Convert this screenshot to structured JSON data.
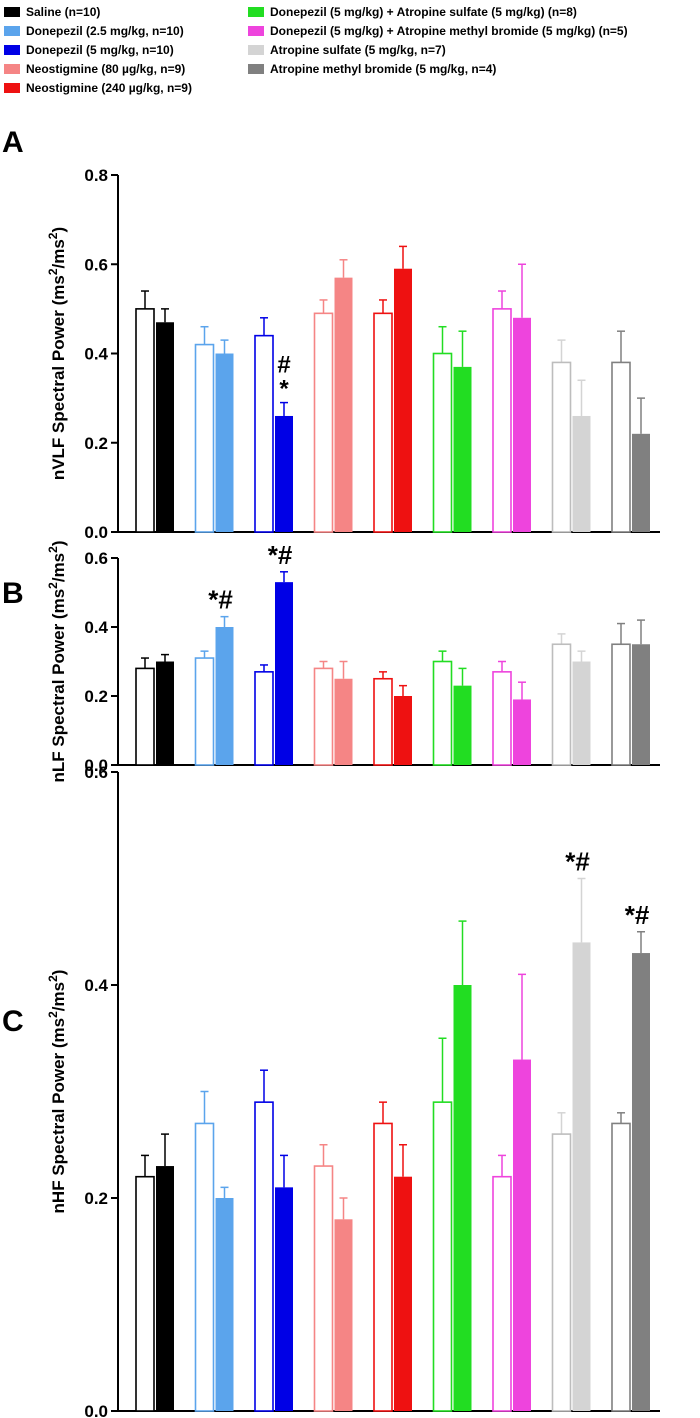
{
  "legend": [
    {
      "label": "Saline (n=10)",
      "color": "#000000"
    },
    {
      "label": "Donepezil (2.5 mg/kg, n=10)",
      "color": "#5ba4ec"
    },
    {
      "label": "Donepezil (5 mg/kg, n=10)",
      "color": "#0000e6"
    },
    {
      "label": "Neostigmine (80 µg/kg, n=9)",
      "color": "#f58585"
    },
    {
      "label": "Neostigmine (240 µg/kg, n=9)",
      "color": "#ee1111"
    },
    {
      "label": "Donepezil (5 mg/kg) + Atropine sulfate (5 mg/kg) (n=8)",
      "color": "#22dd22"
    },
    {
      "label": "Donepezil (5 mg/kg) + Atropine methyl bromide (5 mg/kg) (n=5)",
      "color": "#ee44dd"
    },
    {
      "label": "Atropine sulfate (5 mg/kg, n=7)",
      "color": "#d4d4d4"
    },
    {
      "label": "Atropine methyl bromide (5 mg/kg, n=4)",
      "color": "#808080"
    }
  ],
  "chart_data": [
    {
      "type": "bar",
      "panel_label": "A",
      "ylabel_main": "nVLF Spectral Power (ms",
      "ylabel_sup1": "2",
      "ylabel_mid": "/ms",
      "ylabel_sup2": "2",
      "ylabel_end": ")",
      "ylim": [
        0,
        0.8
      ],
      "yticks": [
        "0.0",
        "0.2",
        "0.4",
        "0.6",
        "0.8"
      ],
      "series": [
        {
          "name": "open (pre)",
          "values": [
            0.5,
            0.42,
            0.44,
            0.49,
            0.49,
            0.4,
            0.5,
            0.38,
            0.38
          ],
          "errors": [
            0.04,
            0.04,
            0.04,
            0.03,
            0.03,
            0.06,
            0.04,
            0.05,
            0.07
          ]
        },
        {
          "name": "filled (post)",
          "values": [
            0.47,
            0.4,
            0.26,
            0.57,
            0.59,
            0.37,
            0.48,
            0.26,
            0.22
          ],
          "errors": [
            0.03,
            0.03,
            0.03,
            0.04,
            0.05,
            0.08,
            0.12,
            0.08,
            0.08
          ]
        }
      ],
      "annotations": [
        {
          "group": 2,
          "text": "#\n*"
        }
      ]
    },
    {
      "type": "bar",
      "panel_label": "B",
      "ylabel_main": "nLF Spectral Power (ms",
      "ylabel_sup1": "2",
      "ylabel_mid": "/ms",
      "ylabel_sup2": "2",
      "ylabel_end": ")",
      "ylim": [
        0,
        0.6
      ],
      "yticks": [
        "0.0",
        "0.2",
        "0.4",
        "0.6"
      ],
      "series": [
        {
          "name": "open (pre)",
          "values": [
            0.28,
            0.31,
            0.27,
            0.28,
            0.25,
            0.3,
            0.27,
            0.35,
            0.35
          ],
          "errors": [
            0.03,
            0.02,
            0.02,
            0.02,
            0.02,
            0.03,
            0.03,
            0.03,
            0.06
          ]
        },
        {
          "name": "filled (post)",
          "values": [
            0.3,
            0.4,
            0.53,
            0.25,
            0.2,
            0.23,
            0.19,
            0.3,
            0.35
          ],
          "errors": [
            0.02,
            0.03,
            0.03,
            0.05,
            0.03,
            0.05,
            0.05,
            0.03,
            0.07
          ]
        }
      ],
      "annotations": [
        {
          "group": 1,
          "text": "*#"
        },
        {
          "group": 2,
          "text": "*#"
        }
      ]
    },
    {
      "type": "bar",
      "panel_label": "C",
      "ylabel_main": "nHF Spectral Power (ms",
      "ylabel_sup1": "2",
      "ylabel_mid": "/ms",
      "ylabel_sup2": "2",
      "ylabel_end": ")",
      "ylim": [
        0,
        0.6
      ],
      "yticks": [
        "0.0",
        "0.2",
        "0.4",
        "0.6"
      ],
      "series": [
        {
          "name": "open (pre)",
          "values": [
            0.22,
            0.27,
            0.29,
            0.23,
            0.27,
            0.29,
            0.22,
            0.26,
            0.27
          ],
          "errors": [
            0.02,
            0.03,
            0.03,
            0.02,
            0.02,
            0.06,
            0.02,
            0.02,
            0.01
          ]
        },
        {
          "name": "filled (post)",
          "values": [
            0.23,
            0.2,
            0.21,
            0.18,
            0.22,
            0.4,
            0.33,
            0.44,
            0.43
          ],
          "errors": [
            0.03,
            0.01,
            0.03,
            0.02,
            0.03,
            0.06,
            0.08,
            0.06,
            0.02
          ]
        }
      ],
      "annotations": [
        {
          "group": 7,
          "text": "*#"
        },
        {
          "group": 8,
          "text": "*#"
        }
      ]
    }
  ]
}
